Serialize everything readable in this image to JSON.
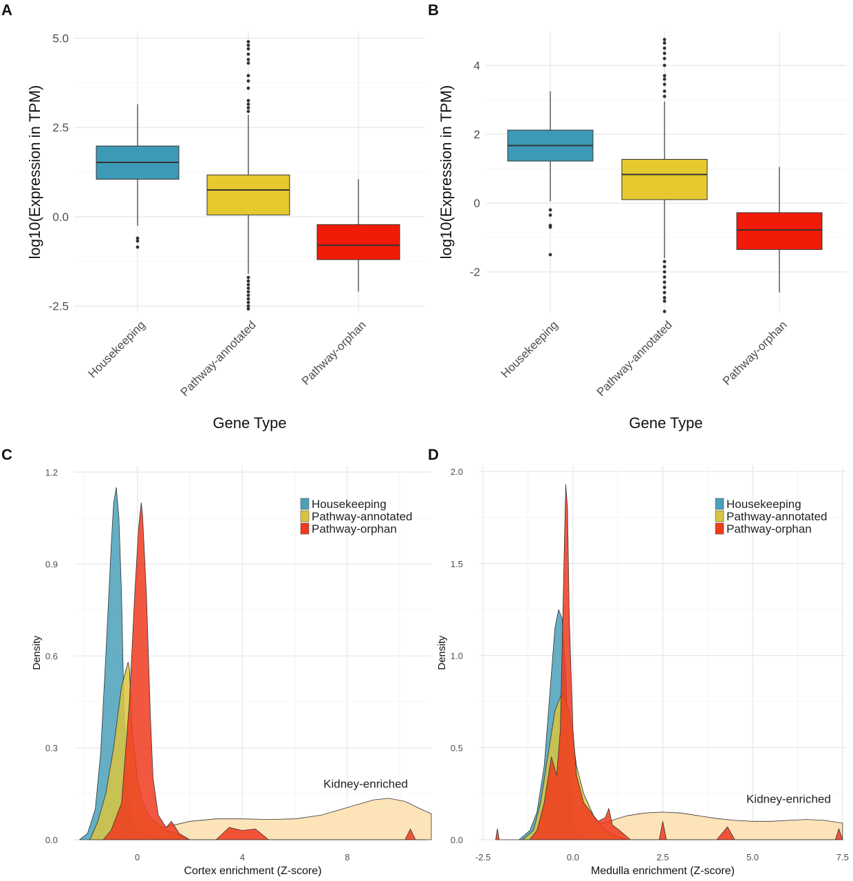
{
  "colors": {
    "housekeeping": "#3d9ab6",
    "annotated": "#e6c92e",
    "orphan": "#f21b07",
    "kidney": "#fde0b0",
    "density_housekeeping": "#4aa0b8",
    "density_annotated": "#d9c440",
    "density_orphan": "#f03a1e"
  },
  "chart_data": [
    {
      "panel": "A",
      "type": "box",
      "xlabel": "Gene Type",
      "ylabel": "log10(Expression in TPM)",
      "ylim": [
        -2.7,
        5.2
      ],
      "yticks": [
        -2.5,
        0.0,
        2.5,
        5.0
      ],
      "ytick_labels": [
        "-2.5",
        "0.0",
        "2.5",
        "5.0"
      ],
      "categories": [
        "Housekeeping",
        "Pathway-annotated",
        "Pathway-orphan"
      ],
      "boxes": [
        {
          "category": "Housekeeping",
          "q1": 1.05,
          "median": 1.52,
          "q3": 1.98,
          "whisker_low": -0.25,
          "whisker_high": 3.15,
          "outliers": [
            -0.6,
            -0.68,
            -0.85
          ]
        },
        {
          "category": "Pathway-annotated",
          "q1": 0.05,
          "median": 0.75,
          "q3": 1.17,
          "whisker_low": -1.6,
          "whisker_high": 2.85,
          "outliers": [
            2.95,
            3.05,
            3.15,
            3.25,
            3.6,
            3.8,
            3.95,
            4.3,
            4.4,
            4.55,
            4.7,
            4.8,
            4.9,
            -1.7,
            -1.8,
            -1.9,
            -2.0,
            -2.1,
            -2.2,
            -2.3,
            -2.4,
            -2.5,
            -2.58
          ]
        },
        {
          "category": "Pathway-orphan",
          "q1": -1.2,
          "median": -0.8,
          "q3": -0.22,
          "whisker_low": -2.1,
          "whisker_high": 1.05,
          "outliers": []
        }
      ]
    },
    {
      "panel": "B",
      "type": "box",
      "xlabel": "Gene Type",
      "ylabel": "log10(Expression in TPM)",
      "ylim": [
        -3.2,
        5.0
      ],
      "yticks": [
        -2,
        0,
        2,
        4
      ],
      "ytick_labels": [
        "-2",
        "0",
        "2",
        "4"
      ],
      "categories": [
        "Housekeeping",
        "Pathway-annotated",
        "Pathway-orphan"
      ],
      "boxes": [
        {
          "category": "Housekeeping",
          "q1": 1.22,
          "median": 1.67,
          "q3": 2.12,
          "whisker_low": 0.05,
          "whisker_high": 3.25,
          "outliers": [
            -0.2,
            -0.35,
            -0.65,
            -0.7,
            -1.5
          ]
        },
        {
          "category": "Pathway-annotated",
          "q1": 0.1,
          "median": 0.83,
          "q3": 1.27,
          "whisker_low": -1.6,
          "whisker_high": 2.95,
          "outliers": [
            3.1,
            3.25,
            3.45,
            3.6,
            3.7,
            4.0,
            4.2,
            4.35,
            4.5,
            4.65,
            4.75,
            -1.7,
            -1.85,
            -2.0,
            -2.15,
            -2.3,
            -2.45,
            -2.6,
            -2.75,
            -2.85,
            -3.15
          ]
        },
        {
          "category": "Pathway-orphan",
          "q1": -1.35,
          "median": -0.78,
          "q3": -0.28,
          "whisker_low": -2.6,
          "whisker_high": 1.05,
          "outliers": []
        }
      ]
    },
    {
      "panel": "C",
      "type": "area",
      "xlabel": "Cortex enrichment (Z-score)",
      "ylabel": "Density",
      "xlim": [
        -2.4,
        11.2
      ],
      "ylim": [
        0,
        1.22
      ],
      "xticks": [
        0,
        4,
        8
      ],
      "xtick_labels": [
        "0",
        "4",
        "8"
      ],
      "yticks": [
        0.0,
        0.3,
        0.6,
        0.9,
        1.2
      ],
      "ytick_labels": [
        "0.0",
        "0.3",
        "0.6",
        "0.9",
        "1.2"
      ],
      "legend": {
        "position": "top-right",
        "entries": [
          "Housekeeping",
          "Pathway-annotated",
          "Pathway-orphan"
        ]
      },
      "annotation": {
        "text": "Kidney-enriched",
        "x": 8.7,
        "y": 0.17
      },
      "series": [
        {
          "name": "Kidney-enriched",
          "x": [
            -1.5,
            -1.0,
            0.0,
            1.0,
            2.0,
            3.0,
            4.0,
            5.0,
            6.0,
            7.0,
            8.0,
            9.0,
            9.6,
            10.2,
            10.8,
            11.2
          ],
          "y": [
            0.0,
            0.005,
            0.02,
            0.04,
            0.06,
            0.068,
            0.068,
            0.066,
            0.068,
            0.08,
            0.105,
            0.13,
            0.135,
            0.125,
            0.1,
            0.085
          ]
        },
        {
          "name": "Housekeeping",
          "x": [
            -2.2,
            -1.9,
            -1.6,
            -1.4,
            -1.2,
            -1.0,
            -0.9,
            -0.8,
            -0.7,
            -0.6,
            -0.5,
            -0.4,
            -0.25,
            0.0,
            0.3,
            0.6,
            1.0,
            1.5,
            2.0
          ],
          "y": [
            0.0,
            0.02,
            0.1,
            0.28,
            0.6,
            0.95,
            1.1,
            1.15,
            1.05,
            0.8,
            0.4,
            0.2,
            0.07,
            0.04,
            0.02,
            0.01,
            0.005,
            0.002,
            0.0
          ]
        },
        {
          "name": "Pathway-annotated",
          "x": [
            -1.8,
            -1.5,
            -1.2,
            -0.9,
            -0.6,
            -0.35,
            -0.3,
            -0.2,
            0.0,
            0.2,
            0.5,
            0.8,
            1.1,
            1.5,
            1.9
          ],
          "y": [
            0.0,
            0.06,
            0.15,
            0.3,
            0.5,
            0.58,
            0.56,
            0.36,
            0.2,
            0.12,
            0.07,
            0.05,
            0.03,
            0.02,
            0.0
          ]
        },
        {
          "name": "Pathway-orphan",
          "x": [
            -1.3,
            -1.0,
            -0.6,
            -0.3,
            -0.1,
            0.05,
            0.15,
            0.2,
            0.35,
            0.5,
            0.6,
            0.8,
            1.1,
            1.3,
            1.6,
            2.0,
            3.0,
            3.5,
            4.0,
            4.5,
            5.0,
            6.0,
            8.0,
            10.2,
            10.4,
            10.6,
            11.0
          ],
          "y": [
            0.0,
            0.03,
            0.12,
            0.45,
            0.8,
            1.02,
            1.1,
            1.06,
            0.8,
            0.4,
            0.2,
            0.08,
            0.04,
            0.06,
            0.02,
            0.0,
            0.0,
            0.04,
            0.03,
            0.035,
            0.0,
            0.0,
            0.0,
            0.0,
            0.035,
            0.0,
            0.0
          ]
        }
      ]
    },
    {
      "panel": "D",
      "type": "area",
      "xlabel": "Medulla enrichment (Z-score)",
      "ylabel": "Density",
      "xlim": [
        -2.6,
        7.6
      ],
      "ylim": [
        0,
        2.03
      ],
      "xticks": [
        -2.5,
        0.0,
        2.5,
        5.0,
        7.5
      ],
      "xtick_labels": [
        "-2.5",
        "0.0",
        "2.5",
        "5.0",
        "7.5"
      ],
      "yticks": [
        0.0,
        0.5,
        1.0,
        1.5,
        2.0
      ],
      "ytick_labels": [
        "0.0",
        "0.5",
        "1.0",
        "1.5",
        "2.0"
      ],
      "legend": {
        "position": "top-right",
        "entries": [
          "Housekeeping",
          "Pathway-annotated",
          "Pathway-orphan"
        ]
      },
      "annotation": {
        "text": "Kidney-enriched",
        "x": 6.0,
        "y": 0.2
      },
      "series": [
        {
          "name": "Kidney-enriched",
          "x": [
            -1.0,
            -0.5,
            0.0,
            0.5,
            1.0,
            1.5,
            2.0,
            2.5,
            3.0,
            3.5,
            4.0,
            4.5,
            5.0,
            5.5,
            6.0,
            6.5,
            7.0,
            7.5
          ],
          "y": [
            0.0,
            0.01,
            0.04,
            0.07,
            0.1,
            0.13,
            0.145,
            0.15,
            0.145,
            0.13,
            0.115,
            0.105,
            0.1,
            0.1,
            0.105,
            0.11,
            0.105,
            0.09
          ]
        },
        {
          "name": "Housekeeping",
          "x": [
            -1.5,
            -1.2,
            -1.0,
            -0.8,
            -0.6,
            -0.5,
            -0.4,
            -0.3,
            -0.2,
            -0.1,
            0.0,
            0.2,
            0.5
          ],
          "y": [
            0.0,
            0.05,
            0.15,
            0.4,
            0.9,
            1.15,
            1.25,
            1.2,
            0.9,
            0.4,
            0.1,
            0.02,
            0.0
          ]
        },
        {
          "name": "Pathway-annotated",
          "x": [
            -1.4,
            -1.1,
            -0.9,
            -0.7,
            -0.5,
            -0.3,
            -0.1,
            0.1,
            0.3,
            0.6,
            0.9,
            1.2,
            1.5
          ],
          "y": [
            0.0,
            0.05,
            0.2,
            0.45,
            0.7,
            0.8,
            0.7,
            0.4,
            0.25,
            0.12,
            0.05,
            0.02,
            0.0
          ]
        },
        {
          "name": "Pathway-orphan",
          "x": [
            -2.15,
            -2.1,
            -2.05,
            -1.8,
            -1.2,
            -1.0,
            -0.8,
            -0.6,
            -0.45,
            -0.35,
            -0.25,
            -0.2,
            -0.15,
            -0.1,
            0.0,
            0.1,
            0.3,
            0.5,
            0.7,
            0.9,
            1.0,
            1.1,
            1.3,
            1.6,
            2.0,
            2.4,
            2.5,
            2.6,
            3.0,
            4.0,
            4.3,
            4.5,
            6.0,
            7.3,
            7.4,
            7.5
          ],
          "y": [
            0.0,
            0.06,
            0.0,
            0.0,
            0.0,
            0.05,
            0.2,
            0.45,
            0.35,
            0.6,
            1.5,
            1.93,
            1.8,
            1.2,
            0.6,
            0.35,
            0.2,
            0.15,
            0.1,
            0.12,
            0.17,
            0.08,
            0.05,
            0.0,
            0.0,
            0.0,
            0.1,
            0.0,
            0.0,
            0.0,
            0.07,
            0.0,
            0.0,
            0.0,
            0.06,
            0.0
          ]
        }
      ]
    }
  ]
}
